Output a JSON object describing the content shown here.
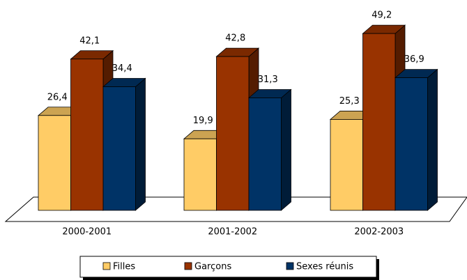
{
  "chart_data": {
    "type": "bar3d",
    "categories": [
      "2000-2001",
      "2001-2002",
      "2002-2003"
    ],
    "series": [
      {
        "name": "Filles",
        "color": "#FFCC66",
        "values": [
          26.4,
          19.9,
          25.3
        ],
        "value_labels": [
          "26,4",
          "19,9",
          "25,3"
        ]
      },
      {
        "name": "Garçons",
        "color": "#993300",
        "values": [
          42.1,
          42.8,
          49.2
        ],
        "value_labels": [
          "42,1",
          "42,8",
          "49,2"
        ]
      },
      {
        "name": "Sexes réunis",
        "color": "#003366",
        "values": [
          34.4,
          31.3,
          36.9
        ],
        "value_labels": [
          "34,4",
          "31,3",
          "36,9"
        ]
      }
    ],
    "legend": "bottom"
  }
}
